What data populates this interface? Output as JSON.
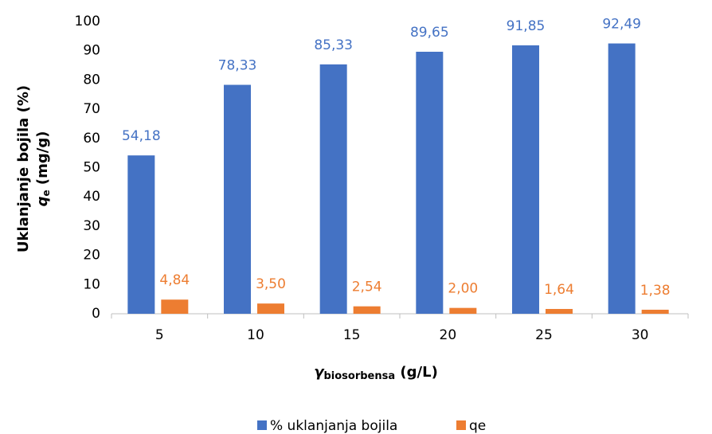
{
  "chart_data": {
    "type": "bar",
    "categories": [
      "5",
      "10",
      "15",
      "20",
      "25",
      "30"
    ],
    "series": [
      {
        "name": "% uklanjanja bojila",
        "color": "#4472c4",
        "values": [
          54.18,
          78.33,
          85.33,
          89.65,
          91.85,
          92.49
        ],
        "value_labels": [
          "54,18",
          "78,33",
          "85,33",
          "89,65",
          "91,85",
          "92,49"
        ]
      },
      {
        "name": "qe",
        "color": "#ed7d31",
        "values": [
          4.84,
          3.5,
          2.54,
          2.0,
          1.64,
          1.38
        ],
        "value_labels": [
          "4,84",
          "3,50",
          "2,54",
          "2,00",
          "1,64",
          "1,38"
        ]
      }
    ],
    "y_label": {
      "line1": "Uklanjanje bojila (%)",
      "line2_main": "q",
      "line2_sub": "e",
      "line2_unit": " (mg/g)"
    },
    "x_label": {
      "main": "γ",
      "sub": "biosorbensa",
      "unit": " (g/L)"
    },
    "ylim": [
      0,
      100
    ],
    "yticks": [
      0,
      10,
      20,
      30,
      40,
      50,
      60,
      70,
      80,
      90,
      100
    ],
    "grid": false,
    "legend": "bottom"
  }
}
